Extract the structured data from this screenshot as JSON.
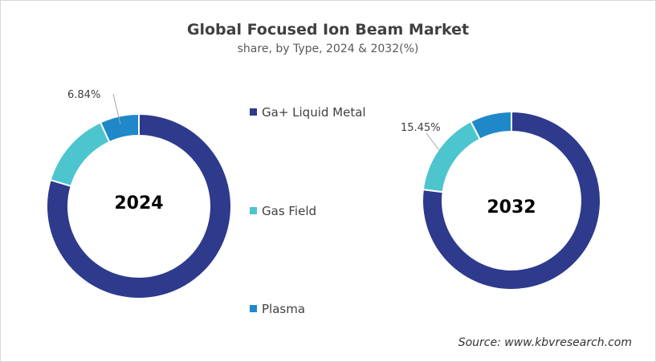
{
  "title": "Global Focused Ion Beam Market",
  "subtitle": "share, by Type, 2024 & 2032(%)",
  "source": "Source: www.kbvresearch.com",
  "colors": {
    "Ga+ Liquid Metal": "#2e3a8c",
    "Gas Field": "#4dc5cf",
    "Plasma": "#1e88c9"
  },
  "chart_data": [
    {
      "type": "pie",
      "variant": "donut",
      "center_label": "2024",
      "categories": [
        "Ga+ Liquid Metal",
        "Gas Field",
        "Plasma"
      ],
      "values": [
        79.6,
        13.56,
        6.84
      ],
      "data_labels": [
        "",
        "",
        "6.84%"
      ]
    },
    {
      "type": "pie",
      "variant": "donut",
      "center_label": "2032",
      "categories": [
        "Ga+ Liquid Metal",
        "Gas Field",
        "Plasma"
      ],
      "values": [
        77.0,
        15.45,
        7.55
      ],
      "data_labels": [
        "",
        "15.45%",
        ""
      ]
    }
  ],
  "legend": {
    "placement": "center",
    "items": [
      "Ga+ Liquid Metal",
      "Gas Field",
      "Plasma"
    ]
  }
}
